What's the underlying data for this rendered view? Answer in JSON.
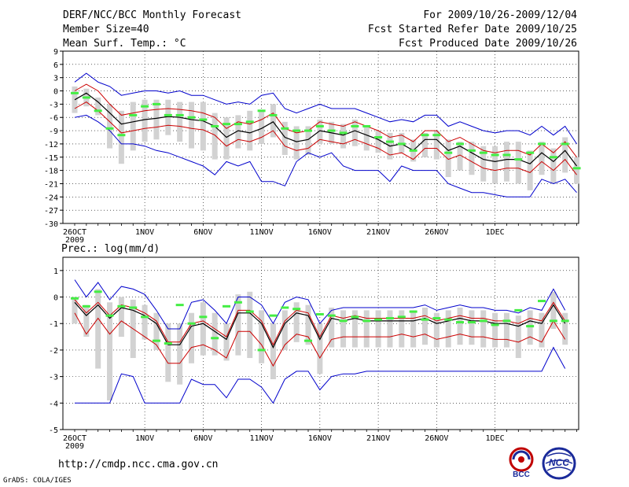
{
  "header": {
    "title": "DERF/NCC/BCC Monthly Forecast",
    "member": "Member Size=40",
    "variable": "Mean Surf. Temp.: °C",
    "period": "For 2009/10/26-2009/12/04",
    "started": "Fcst Started Refer Date 2009/10/25",
    "produced": "Fcst Produced Date 2009/10/26"
  },
  "footer": {
    "url": "http://cmdp.ncc.cma.gov.cn",
    "grads": "GrADS: COLA/IGES",
    "logo_bcc": "BCC",
    "logo_ncc": "NCC"
  },
  "colors": {
    "box": "#d2d2d2",
    "mean": "#000000",
    "spread": "#cc0000",
    "extreme": "#0000cc",
    "marker": "#44ee44",
    "grid": "#000000"
  },
  "chart_data": [
    {
      "type": "line",
      "title": "Mean Surf. Temp.: °C",
      "ylim": [
        -30,
        9
      ],
      "yticks": [
        9,
        6,
        3,
        0,
        -3,
        -6,
        -9,
        -12,
        -15,
        -18,
        -21,
        -24,
        -27,
        -30
      ],
      "x_labels": [
        {
          "day": 1,
          "label": "26OCT",
          "sub": "2009"
        },
        {
          "day": 7,
          "label": "1NOV"
        },
        {
          "day": 12,
          "label": "6NOV"
        },
        {
          "day": 17,
          "label": "11NOV"
        },
        {
          "day": 22,
          "label": "16NOV"
        },
        {
          "day": 27,
          "label": "21NOV"
        },
        {
          "day": 32,
          "label": "26NOV"
        },
        {
          "day": 37,
          "label": "1DEC"
        }
      ],
      "series": [
        {
          "name": "ensemble mean",
          "values": [
            -2,
            -0.5,
            -2.5,
            -5,
            -7.5,
            -7,
            -6.5,
            -6.2,
            -5.8,
            -6,
            -6.5,
            -6.8,
            -8,
            -10.5,
            -9,
            -9.5,
            -8.5,
            -7,
            -10.5,
            -11.5,
            -11,
            -9,
            -9.5,
            -10,
            -9,
            -10,
            -11,
            -12.5,
            -12,
            -13.5,
            -11,
            -11,
            -13.5,
            -12.5,
            -14,
            -15.5,
            -16,
            -15.5,
            -15.5,
            -16.5,
            -14,
            -16,
            -13.5,
            -17
          ]
        },
        {
          "name": "upper spread",
          "values": [
            0,
            1.5,
            0,
            -3,
            -5.5,
            -5,
            -4.5,
            -4.2,
            -4,
            -4.2,
            -4.5,
            -5,
            -6,
            -8.5,
            -7,
            -7.5,
            -6.5,
            -5,
            -8.5,
            -9.5,
            -9,
            -7,
            -7.5,
            -8,
            -7,
            -8,
            -9,
            -10.5,
            -10,
            -11.5,
            -9,
            -9,
            -11.5,
            -10.5,
            -12,
            -13.5,
            -14,
            -13.5,
            -13.5,
            -14.5,
            -12,
            -14,
            -11.5,
            -15
          ]
        },
        {
          "name": "lower spread",
          "values": [
            -4,
            -2.5,
            -4.5,
            -7,
            -9.5,
            -9,
            -8.5,
            -8.2,
            -7.8,
            -8,
            -8.5,
            -8.8,
            -10,
            -12.5,
            -11,
            -11.5,
            -10.5,
            -9,
            -12.5,
            -13.5,
            -13,
            -11,
            -11.5,
            -12,
            -11,
            -12,
            -13,
            -14.5,
            -14,
            -15.5,
            -13,
            -13,
            -15.5,
            -14.5,
            -16,
            -17.5,
            -18,
            -17.5,
            -17.5,
            -18.5,
            -16,
            -18,
            -15.5,
            -19
          ]
        },
        {
          "name": "maximum",
          "values": [
            2,
            4,
            2,
            1,
            -1,
            -0.5,
            0,
            0,
            -0.5,
            0,
            -1,
            -1,
            -2,
            -3,
            -2.5,
            -3,
            -1,
            -0.5,
            -4,
            -5,
            -4,
            -3,
            -4,
            -4,
            -4,
            -5,
            -6,
            -7,
            -6.5,
            -7,
            -5.5,
            -5.5,
            -8,
            -7,
            -8,
            -9,
            -9.5,
            -9,
            -9,
            -10,
            -8,
            -10,
            -8,
            -12
          ]
        },
        {
          "name": "minimum",
          "values": [
            -6,
            -5.5,
            -7,
            -9,
            -12,
            -12,
            -12.5,
            -13.5,
            -14,
            -15,
            -16,
            -17,
            -19,
            -16,
            -17,
            -16,
            -20.5,
            -20.5,
            -21.5,
            -16,
            -14,
            -15,
            -14,
            -17,
            -18,
            -18,
            -18,
            -20.5,
            -17,
            -18,
            -18,
            -18,
            -21,
            -22,
            -23,
            -23,
            -23.5,
            -24,
            -24,
            -24,
            -20,
            -21,
            -20,
            -23
          ]
        },
        {
          "name": "box top",
          "values": [
            1,
            0.5,
            -1.5,
            -3,
            -4.5,
            -2.5,
            -2,
            -2,
            -2,
            -2.5,
            -2.5,
            -2.5,
            -5,
            -6,
            -5.5,
            -4.5,
            -4.5,
            -3,
            -7,
            -8,
            -8,
            -6.5,
            -7,
            -7.5,
            -6.5,
            -8,
            -9,
            -9.5,
            -9.5,
            -11,
            -9.5,
            -9,
            -11,
            -11.5,
            -11.5,
            -12.5,
            -12.5,
            -11.5,
            -11.5,
            -13.5,
            -11.5,
            -13,
            -10.5,
            -15
          ]
        },
        {
          "name": "box bottom",
          "values": [
            -5,
            -3.5,
            -5.5,
            -13,
            -16.5,
            -13.5,
            -11.5,
            -11,
            -10,
            -11.5,
            -13,
            -13.5,
            -15.5,
            -15.5,
            -13,
            -13.5,
            -12,
            -10.5,
            -14.5,
            -15.5,
            -14.5,
            -12,
            -12,
            -13,
            -12.5,
            -13.5,
            -14,
            -15.5,
            -14,
            -16,
            -15,
            -15.5,
            -19.5,
            -18,
            -19,
            -20.5,
            -21,
            -20.5,
            -21,
            -22.5,
            -19,
            -21,
            -18.5,
            -21
          ]
        },
        {
          "name": "observed marker",
          "values": [
            -0.5,
            -1.5,
            -4.5,
            -8.5,
            -10,
            -5.5,
            -3.5,
            -3,
            -5.5,
            -5.5,
            -6,
            -6.5,
            -8,
            -7.5,
            -7.5,
            -7,
            -4.5,
            -5.5,
            -8.5,
            -9,
            -9,
            -8,
            -9,
            -9.5,
            -8,
            -8,
            -10.5,
            -11.5,
            -12,
            -13.5,
            -10,
            -10,
            -14,
            -12,
            -13.5,
            -14,
            -14.5,
            -14.5,
            -15.5,
            -14,
            -12,
            -15,
            -12,
            -17.5
          ]
        }
      ]
    },
    {
      "type": "line",
      "title": "Prec.: log(mm/d)",
      "ylim": [
        -5,
        1.5
      ],
      "yticks": [
        1,
        0,
        -1,
        -2,
        -3,
        -4,
        -5
      ],
      "x_labels": [
        {
          "day": 1,
          "label": "26OCT",
          "sub": "2009"
        },
        {
          "day": 7,
          "label": "1NOV"
        },
        {
          "day": 12,
          "label": "6NOV"
        },
        {
          "day": 17,
          "label": "11NOV"
        },
        {
          "day": 22,
          "label": "16NOV"
        },
        {
          "day": 27,
          "label": "21NOV"
        },
        {
          "day": 32,
          "label": "26NOV"
        },
        {
          "day": 37,
          "label": "1DEC"
        }
      ],
      "series": [
        {
          "name": "ensemble mean",
          "values": [
            -0.2,
            -0.7,
            -0.3,
            -0.8,
            -0.4,
            -0.5,
            -0.7,
            -1,
            -1.8,
            -1.8,
            -1.1,
            -1,
            -1.3,
            -1.6,
            -0.6,
            -0.6,
            -1,
            -1.9,
            -1,
            -0.6,
            -0.7,
            -1.6,
            -0.8,
            -0.9,
            -0.8,
            -0.9,
            -0.9,
            -0.9,
            -0.9,
            -0.9,
            -0.8,
            -1,
            -0.9,
            -0.8,
            -0.9,
            -0.9,
            -1,
            -1,
            -1.1,
            -0.9,
            -1,
            -0.3,
            -1
          ]
        },
        {
          "name": "upper spread",
          "values": [
            -0.1,
            -0.6,
            -0.2,
            -0.7,
            -0.3,
            -0.4,
            -0.6,
            -0.9,
            -1.7,
            -1.7,
            -1,
            -0.9,
            -1.2,
            -1.5,
            -0.5,
            -0.5,
            -0.9,
            -1.8,
            -0.9,
            -0.5,
            -0.6,
            -1.5,
            -0.7,
            -0.8,
            -0.7,
            -0.8,
            -0.8,
            -0.8,
            -0.8,
            -0.8,
            -0.7,
            -0.9,
            -0.8,
            -0.7,
            -0.8,
            -0.8,
            -0.9,
            -0.9,
            -1,
            -0.8,
            -0.9,
            -0.2,
            -0.9
          ]
        },
        {
          "name": "lower spread",
          "values": [
            -0.6,
            -1.4,
            -0.8,
            -1.4,
            -0.9,
            -1.2,
            -1.5,
            -1.8,
            -2.5,
            -2.5,
            -1.9,
            -1.8,
            -2,
            -2.3,
            -1.3,
            -1.3,
            -1.8,
            -2.6,
            -1.8,
            -1.4,
            -1.5,
            -2.3,
            -1.6,
            -1.5,
            -1.5,
            -1.5,
            -1.5,
            -1.5,
            -1.4,
            -1.5,
            -1.4,
            -1.6,
            -1.5,
            -1.4,
            -1.5,
            -1.5,
            -1.6,
            -1.6,
            -1.7,
            -1.5,
            -1.7,
            -0.9,
            -1.6
          ]
        },
        {
          "name": "maximum",
          "values": [
            0.65,
            0,
            0.55,
            -0.1,
            0.4,
            0.3,
            0.1,
            -0.5,
            -1.2,
            -1.2,
            -0.2,
            -0.1,
            -0.5,
            -1,
            0,
            0,
            -0.3,
            -1,
            -0.2,
            0,
            -0.1,
            -1,
            -0.5,
            -0.4,
            -0.4,
            -0.4,
            -0.4,
            -0.4,
            -0.4,
            -0.4,
            -0.3,
            -0.5,
            -0.4,
            -0.3,
            -0.4,
            -0.4,
            -0.5,
            -0.5,
            -0.6,
            -0.4,
            -0.5,
            0.3,
            -0.5
          ]
        },
        {
          "name": "minimum",
          "values": [
            -4,
            -4,
            -4,
            -4,
            -2.9,
            -3,
            -4,
            -4,
            -4,
            -4,
            -3.1,
            -3.3,
            -3.3,
            -3.8,
            -3.1,
            -3.1,
            -3.4,
            -4,
            -3.1,
            -2.8,
            -2.8,
            -3.5,
            -3,
            -2.9,
            -2.9,
            -2.8,
            -2.8,
            -2.8,
            -2.8,
            -2.8,
            -2.8,
            -2.8,
            -2.8,
            -2.8,
            -2.8,
            -2.8,
            -2.8,
            -2.8,
            -2.8,
            -2.8,
            -2.8,
            -1.9,
            -2.7
          ]
        },
        {
          "name": "box top",
          "values": [
            0,
            -0.3,
            0.3,
            -0.2,
            0,
            -0.1,
            -0.3,
            -0.6,
            -1,
            -1,
            -0.6,
            -0.2,
            -0.6,
            -1,
            0.1,
            0.2,
            -0.5,
            -1,
            -0.5,
            -0.2,
            -0.3,
            -1,
            -0.4,
            -0.5,
            -0.5,
            -0.5,
            -0.5,
            -0.5,
            -0.5,
            -0.5,
            -0.4,
            -0.6,
            -0.5,
            -0.4,
            -0.5,
            -0.5,
            -0.6,
            -0.6,
            -0.7,
            -0.5,
            -0.6,
            0.2,
            -0.6
          ]
        },
        {
          "name": "box bottom",
          "values": [
            -1,
            -1.5,
            -2.7,
            -3.9,
            -1.5,
            -2.3,
            -1.6,
            -2,
            -3.2,
            -3.3,
            -2.5,
            -2.2,
            -2.2,
            -2.4,
            -2.2,
            -2.3,
            -2.5,
            -3.1,
            -2,
            -1.7,
            -1.8,
            -2.9,
            -1.9,
            -1.9,
            -1.9,
            -1.9,
            -1.9,
            -1.9,
            -1.9,
            -1.9,
            -1.8,
            -1.9,
            -1.9,
            -1.8,
            -1.8,
            -1.9,
            -1.9,
            -1.9,
            -2.3,
            -1.8,
            -1.9,
            -1.2,
            -1.8
          ]
        },
        {
          "name": "observed marker",
          "values": [
            -0.05,
            -0.35,
            0.2,
            -0.7,
            -0.35,
            -0.4,
            -0.75,
            -1.65,
            -1.75,
            -0.3,
            -1,
            -0.75,
            -1.55,
            -0.35,
            -0.2,
            -0.55,
            -2,
            -0.7,
            -0.4,
            -0.45,
            -1.65,
            -0.65,
            -0.7,
            -0.9,
            -0.75,
            -0.9,
            -0.85,
            -0.8,
            -0.75,
            -0.55,
            -0.85,
            -0.8,
            -0.85,
            -0.95,
            -0.95,
            -0.9,
            -1.05,
            -0.9,
            -0.5,
            -1.1,
            -0.15,
            -0.9,
            -0.9
          ]
        }
      ]
    }
  ]
}
